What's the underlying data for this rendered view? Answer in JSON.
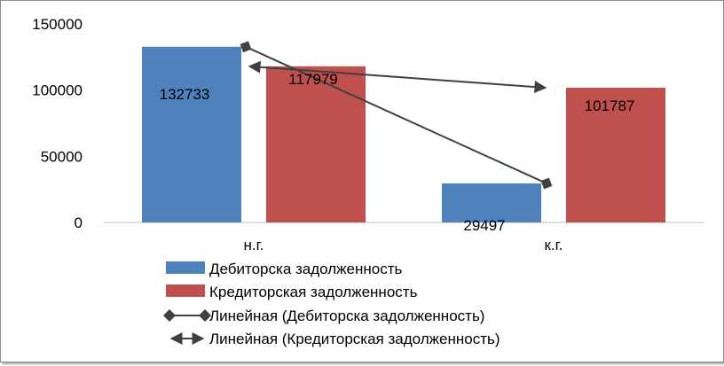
{
  "chart_data": {
    "type": "bar",
    "categories": [
      "н.г.",
      "к.г."
    ],
    "series": [
      {
        "name": "Дебиторска задолженность",
        "values": [
          132733,
          29497
        ],
        "color": "#4f81bd"
      },
      {
        "name": "Кредиторская задолженность",
        "values": [
          117979,
          101787
        ],
        "color": "#c0504d"
      }
    ],
    "trendlines": [
      {
        "name": "Линейная (Дебиторска задолженность)",
        "series": 0,
        "marker": "diamond",
        "color": "#404040"
      },
      {
        "name": "Линейная (Кредиторская задолженность)",
        "series": 1,
        "marker": "arrow",
        "color": "#404040"
      }
    ],
    "ylim": [
      0,
      150000
    ],
    "yticks": [
      "0",
      "50000",
      "100000",
      "150000"
    ],
    "grid": false,
    "legend_position": "bottom",
    "data_labels": [
      "132733",
      "29497",
      "117979",
      "101787"
    ]
  }
}
